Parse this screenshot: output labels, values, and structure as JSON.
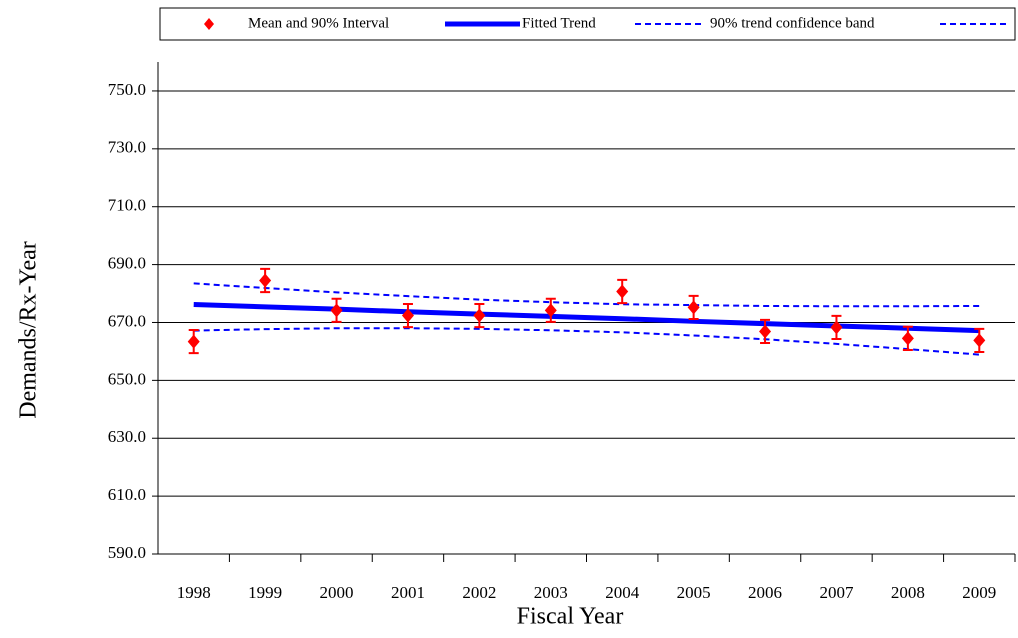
{
  "chart_data": {
    "type": "errorbar_trend",
    "x_label": "Fiscal Year",
    "y_label": "Demands/Rx-Year",
    "categories": [
      "1998",
      "1999",
      "2000",
      "2001",
      "2002",
      "2003",
      "2004",
      "2005",
      "2006",
      "2007",
      "2008",
      "2009"
    ],
    "series": [
      {
        "name": "Mean and 90% Interval",
        "color": "#ff0000",
        "values": [
          663.4,
          684.5,
          674.2,
          672.4,
          672.4,
          674.2,
          680.7,
          675.2,
          666.9,
          668.3,
          664.5,
          663.8
        ],
        "errors": [
          4,
          4,
          4,
          4,
          4,
          4,
          4,
          4,
          4,
          4,
          4,
          4
        ]
      },
      {
        "name": "Fitted Trend",
        "color": "#0000ff",
        "values": [
          676.2,
          675.4,
          674.6,
          673.7,
          672.9,
          672.1,
          671.3,
          670.4,
          669.6,
          668.8,
          668.0,
          667.2
        ]
      },
      {
        "name": "90% trend confidence band",
        "color": "#0000ff",
        "upper": [
          683.5,
          681.9,
          680.4,
          679.1,
          677.9,
          677.0,
          676.3,
          676.0,
          675.7,
          675.6,
          675.6,
          675.7
        ],
        "lower": [
          667.2,
          667.7,
          668.0,
          668.0,
          667.8,
          667.3,
          666.6,
          665.5,
          664.2,
          662.6,
          660.8,
          658.9
        ]
      }
    ],
    "ylim": [
      590,
      760
    ],
    "yticks": [
      {
        "value": 590,
        "label": "590.0"
      },
      {
        "value": 610,
        "label": "610.0"
      },
      {
        "value": 630,
        "label": "630.0"
      },
      {
        "value": 650,
        "label": "650.0"
      },
      {
        "value": 670,
        "label": "670.0"
      },
      {
        "value": 690,
        "label": "690.0"
      },
      {
        "value": 710,
        "label": "710.0"
      },
      {
        "value": 730,
        "label": "730.0"
      },
      {
        "value": 750,
        "label": "750.0"
      }
    ],
    "grid": true
  }
}
